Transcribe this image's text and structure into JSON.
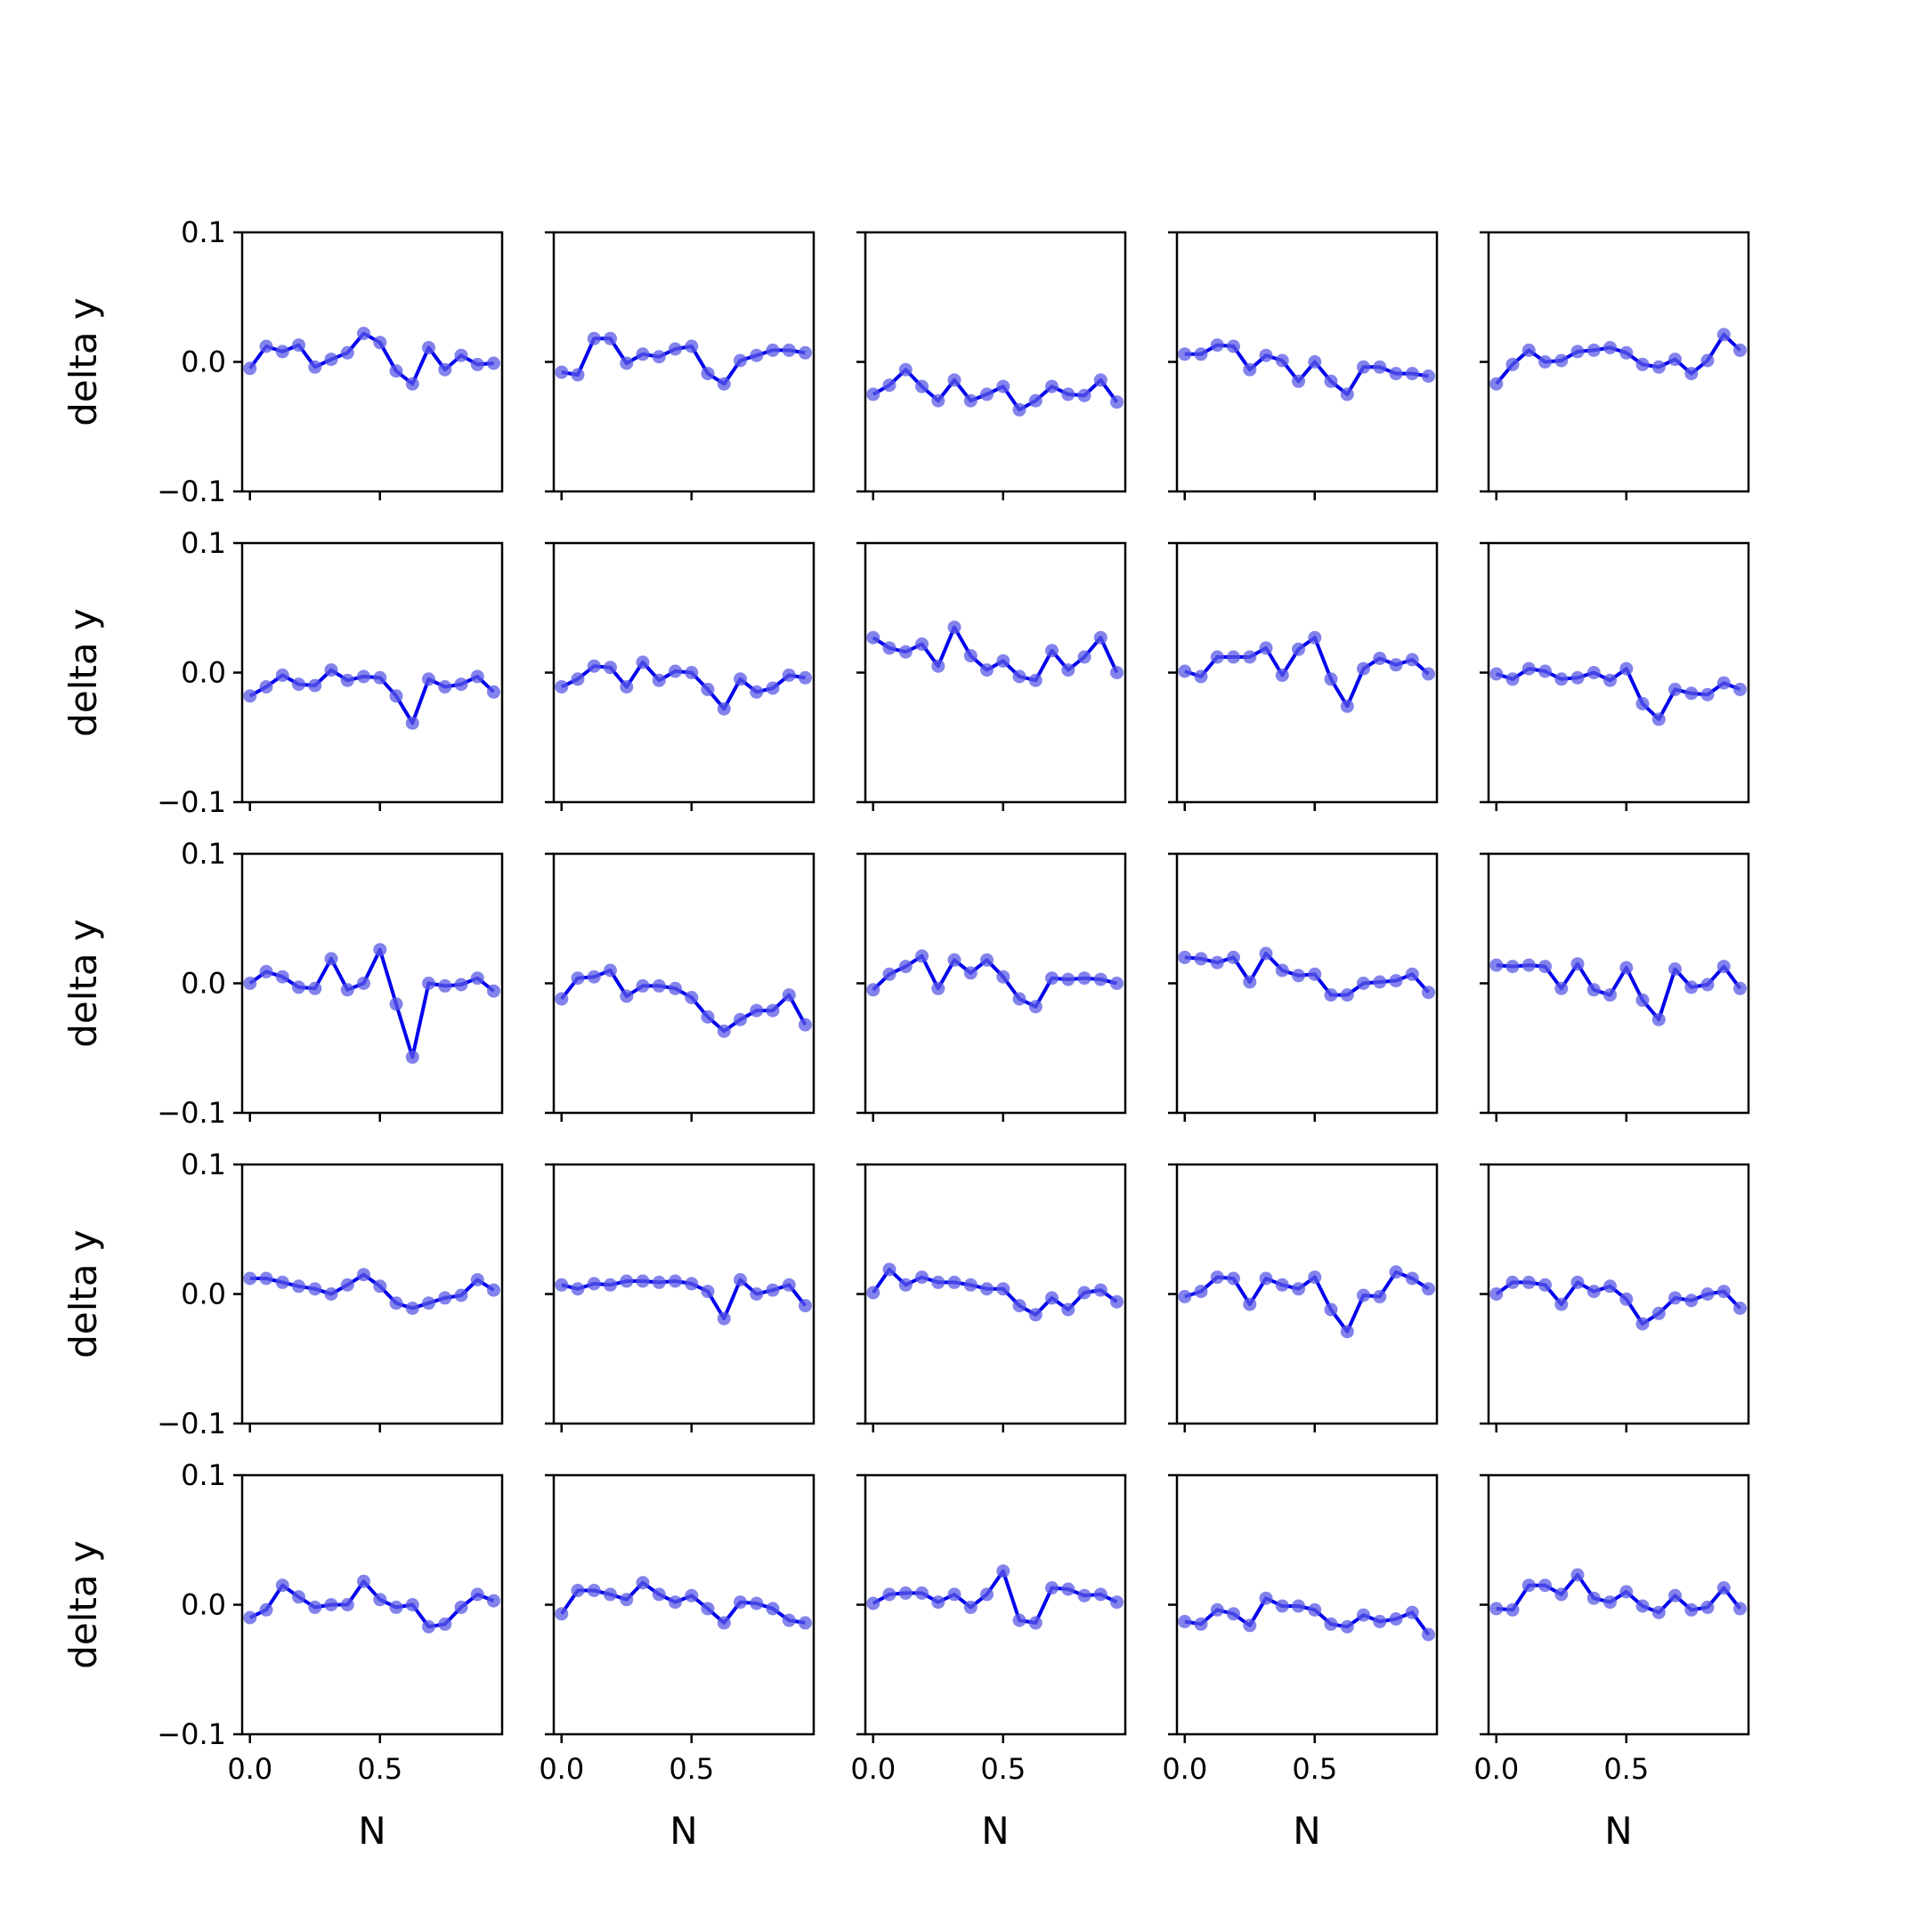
{
  "chart_data": {
    "type": "line",
    "layout": {
      "rows": 5,
      "cols": 5
    },
    "xlabel": "N",
    "ylabel": "delta y",
    "xlim": [
      -0.03,
      0.97
    ],
    "ylim": [
      -0.1,
      0.1
    ],
    "xticks": [
      0.0,
      0.5
    ],
    "xtick_labels": [
      "0.0",
      "0.5"
    ],
    "yticks": [
      -0.1,
      0.0,
      0.1
    ],
    "ytick_labels": [
      "−0.1",
      "0.0",
      "0.1"
    ],
    "x": [
      0.0,
      0.0625,
      0.125,
      0.1875,
      0.25,
      0.3125,
      0.375,
      0.4375,
      0.5,
      0.5625,
      0.625,
      0.6875,
      0.75,
      0.8125,
      0.875,
      0.9375
    ],
    "line_color": "#0000ee",
    "marker_color": "#5a5ae6",
    "panels": [
      [
        -0.005,
        0.012,
        0.008,
        0.013,
        -0.004,
        0.002,
        0.007,
        0.022,
        0.015,
        -0.007,
        -0.017,
        0.011,
        -0.006,
        0.005,
        -0.002,
        -0.001
      ],
      [
        -0.008,
        -0.01,
        0.018,
        0.018,
        -0.001,
        0.006,
        0.004,
        0.01,
        0.012,
        -0.009,
        -0.017,
        0.001,
        0.005,
        0.009,
        0.009,
        0.007
      ],
      [
        -0.025,
        -0.018,
        -0.006,
        -0.019,
        -0.03,
        -0.014,
        -0.03,
        -0.025,
        -0.019,
        -0.037,
        -0.03,
        -0.019,
        -0.025,
        -0.026,
        -0.014,
        -0.031
      ],
      [
        0.006,
        0.006,
        0.013,
        0.012,
        -0.006,
        0.005,
        0.001,
        -0.015,
        0.0,
        -0.015,
        -0.025,
        -0.004,
        -0.004,
        -0.009,
        -0.009,
        -0.011
      ],
      [
        -0.017,
        -0.002,
        0.009,
        0.0,
        0.001,
        0.008,
        0.009,
        0.011,
        0.007,
        -0.002,
        -0.004,
        0.002,
        -0.009,
        0.001,
        0.021,
        0.009
      ]
    ],
    "panels_2": [
      [
        -0.018,
        -0.011,
        -0.002,
        -0.009,
        -0.01,
        0.002,
        -0.006,
        -0.003,
        -0.004,
        -0.018,
        -0.039,
        -0.005,
        -0.011,
        -0.009,
        -0.003,
        -0.015
      ],
      [
        -0.011,
        -0.005,
        0.005,
        0.004,
        -0.011,
        0.008,
        -0.006,
        0.001,
        0.0,
        -0.013,
        -0.028,
        -0.005,
        -0.015,
        -0.012,
        -0.002,
        -0.004
      ],
      [
        0.027,
        0.019,
        0.016,
        0.022,
        0.005,
        0.035,
        0.013,
        0.002,
        0.009,
        -0.003,
        -0.006,
        0.017,
        0.002,
        0.012,
        0.027,
        0.0
      ],
      [
        0.001,
        -0.003,
        0.012,
        0.012,
        0.012,
        0.019,
        -0.002,
        0.018,
        0.027,
        -0.005,
        -0.026,
        0.003,
        0.011,
        0.006,
        0.01,
        -0.001
      ],
      [
        -0.001,
        -0.005,
        0.003,
        0.001,
        -0.005,
        -0.004,
        0.0,
        -0.006,
        0.003,
        -0.024,
        -0.036,
        -0.013,
        -0.016,
        -0.017,
        -0.008,
        -0.013
      ]
    ],
    "panels_3": [
      [
        0.0,
        0.009,
        0.005,
        -0.003,
        -0.004,
        0.019,
        -0.005,
        0.0,
        0.026,
        -0.016,
        -0.057,
        0.0,
        -0.002,
        -0.001,
        0.004,
        -0.006
      ],
      [
        -0.012,
        0.004,
        0.005,
        0.01,
        -0.01,
        -0.002,
        -0.002,
        -0.004,
        -0.011,
        -0.026,
        -0.037,
        -0.028,
        -0.021,
        -0.021,
        -0.009,
        -0.032
      ],
      [
        -0.005,
        0.007,
        0.013,
        0.021,
        -0.004,
        0.018,
        0.008,
        0.018,
        0.005,
        -0.012,
        -0.018,
        0.004,
        0.003,
        0.004,
        0.003,
        0.0
      ],
      [
        0.02,
        0.019,
        0.016,
        0.02,
        0.001,
        0.023,
        0.01,
        0.006,
        0.007,
        -0.009,
        -0.009,
        0.0,
        0.001,
        0.002,
        0.007,
        -0.007
      ],
      [
        0.014,
        0.013,
        0.014,
        0.013,
        -0.004,
        0.015,
        -0.005,
        -0.009,
        0.012,
        -0.013,
        -0.028,
        0.011,
        -0.003,
        -0.001,
        0.013,
        -0.004
      ]
    ],
    "panels_4": [
      [
        0.012,
        0.012,
        0.009,
        0.006,
        0.004,
        0.0,
        0.007,
        0.015,
        0.006,
        -0.007,
        -0.011,
        -0.007,
        -0.003,
        -0.001,
        0.011,
        0.003
      ],
      [
        0.007,
        0.004,
        0.008,
        0.007,
        0.01,
        0.01,
        0.009,
        0.01,
        0.008,
        0.002,
        -0.019,
        0.011,
        0.0,
        0.003,
        0.007,
        -0.009
      ],
      [
        0.001,
        0.019,
        0.007,
        0.013,
        0.009,
        0.009,
        0.007,
        0.004,
        0.004,
        -0.009,
        -0.016,
        -0.003,
        -0.012,
        0.001,
        0.003,
        -0.006
      ],
      [
        -0.002,
        0.002,
        0.013,
        0.012,
        -0.008,
        0.012,
        0.007,
        0.004,
        0.013,
        -0.012,
        -0.029,
        -0.001,
        -0.002,
        0.017,
        0.012,
        0.004
      ],
      [
        0.0,
        0.009,
        0.009,
        0.007,
        -0.008,
        0.009,
        0.002,
        0.006,
        -0.004,
        -0.023,
        -0.015,
        -0.003,
        -0.005,
        0.0,
        0.002,
        -0.011
      ]
    ],
    "panels_5": [
      [
        -0.01,
        -0.004,
        0.015,
        0.006,
        -0.002,
        0.0,
        0.0,
        0.018,
        0.004,
        -0.002,
        0.0,
        -0.017,
        -0.015,
        -0.002,
        0.008,
        0.003
      ],
      [
        -0.007,
        0.011,
        0.011,
        0.008,
        0.004,
        0.017,
        0.008,
        0.002,
        0.007,
        -0.003,
        -0.014,
        0.002,
        0.001,
        -0.003,
        -0.012,
        -0.014
      ],
      [
        0.001,
        0.008,
        0.009,
        0.009,
        0.002,
        0.008,
        -0.002,
        0.008,
        0.026,
        -0.012,
        -0.014,
        0.013,
        0.012,
        0.007,
        0.008,
        0.002
      ],
      [
        -0.013,
        -0.015,
        -0.004,
        -0.007,
        -0.016,
        0.005,
        -0.001,
        -0.001,
        -0.004,
        -0.015,
        -0.017,
        -0.008,
        -0.013,
        -0.011,
        -0.006,
        -0.023
      ],
      [
        -0.003,
        -0.004,
        0.015,
        0.015,
        0.008,
        0.023,
        0.005,
        0.002,
        0.01,
        -0.001,
        -0.006,
        0.007,
        -0.004,
        -0.002,
        0.013,
        -0.003
      ]
    ]
  }
}
